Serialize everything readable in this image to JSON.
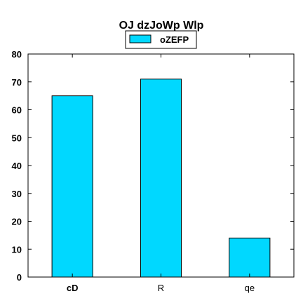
{
  "chart_data": {
    "type": "bar",
    "title": "OJ dzJoWp Wlp",
    "xlabel": "",
    "ylabel": "",
    "categories": [
      "cD",
      "R",
      "qe"
    ],
    "series": [
      {
        "name": "oZEFP",
        "values": [
          65,
          71,
          14
        ],
        "color": "#00d8ff"
      }
    ],
    "ylim": [
      0,
      80
    ],
    "yticks": [
      0,
      10,
      20,
      30,
      40,
      50,
      60,
      70,
      80
    ],
    "ytick_labels": [
      "0",
      "10",
      "20",
      "30",
      "40",
      "50",
      "60",
      "70",
      "80"
    ],
    "grid": false,
    "legend_position": "top-center"
  },
  "colors": {
    "bar_fill": "#00d8ff",
    "bar_stroke": "#000000",
    "axis": "#000000",
    "background": "#ffffff"
  }
}
